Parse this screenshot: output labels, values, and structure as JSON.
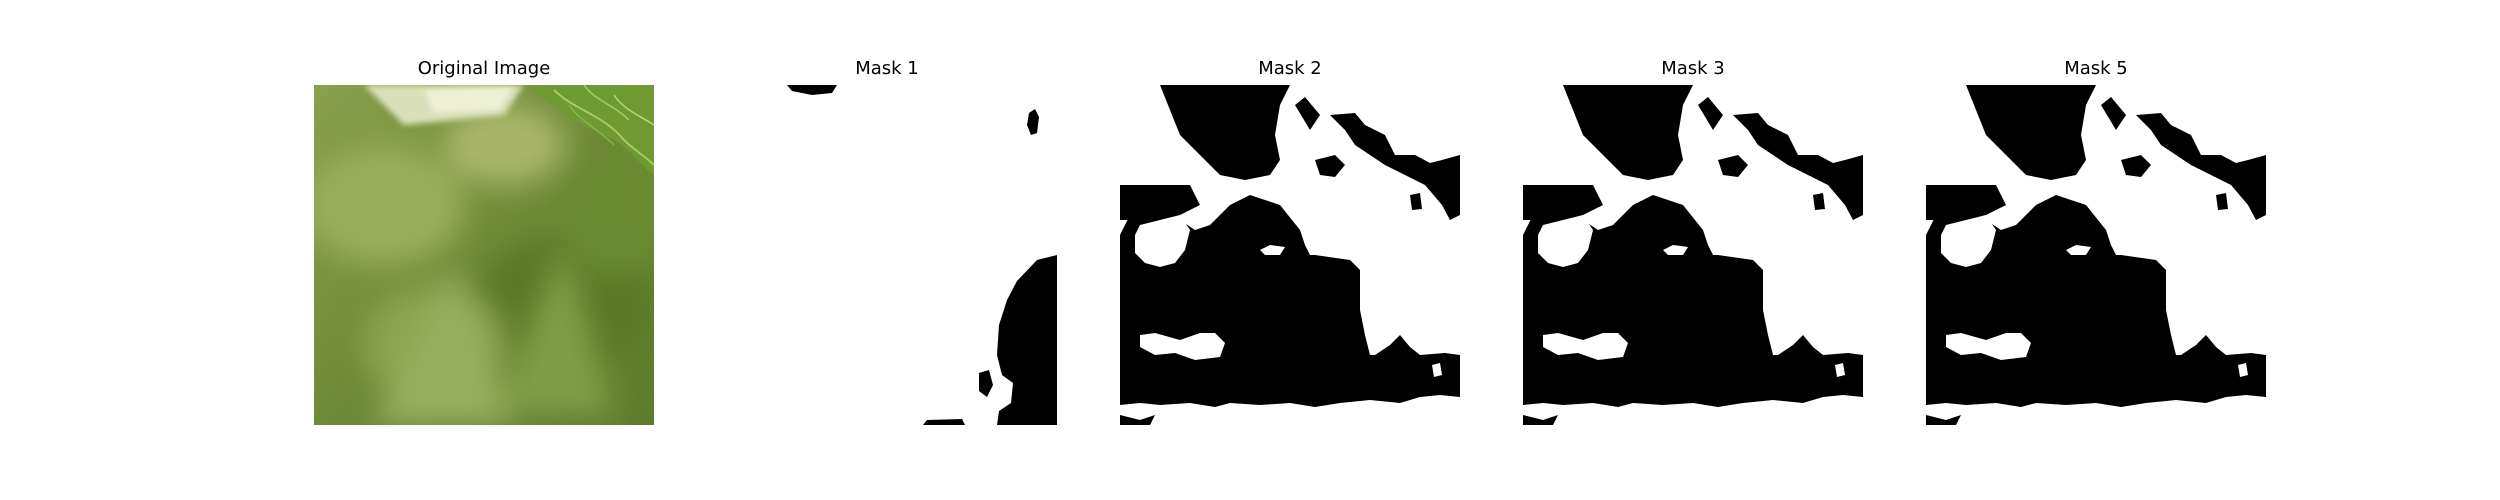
{
  "figure": {
    "panels": [
      {
        "title": "Original Image"
      },
      {
        "title": "Mask 1"
      },
      {
        "title": "Mask 2"
      },
      {
        "title": "Mask 3"
      },
      {
        "title": "Mask 5"
      }
    ]
  },
  "colors": {
    "background": "#ffffff",
    "mask_foreground": "#ffffff",
    "mask_background": "#000000",
    "leaf_green": "#6f8f3a"
  }
}
